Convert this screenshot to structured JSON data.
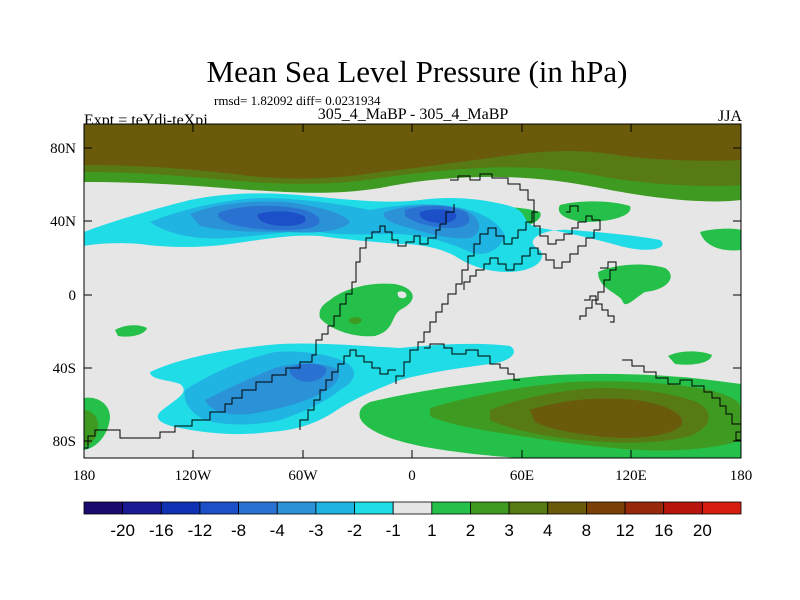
{
  "title": "Mean Sea Level Pressure (in hPa)",
  "stats": "rmsd= 1.82092 diff= 0.0231934",
  "left_label": "Expt = teYdj-teXpj",
  "center_label": "305_4_MaBP - 305_4_MaBP",
  "right_label": "JJA",
  "lat_ticks": [
    "80N",
    "40N",
    "0",
    "40S",
    "80S"
  ],
  "lon_ticks": [
    "180",
    "120W",
    "60W",
    "0",
    "60E",
    "120E",
    "180"
  ],
  "colorbar": {
    "labels": [
      "-20",
      "-16",
      "-12",
      "-8",
      "-4",
      "-3",
      "-2",
      "-1",
      "1",
      "2",
      "3",
      "4",
      "8",
      "12",
      "16",
      "20"
    ],
    "colors": [
      "#1a0a6e",
      "#1b1a94",
      "#0f32b4",
      "#1c50c8",
      "#2a72d2",
      "#2b92d8",
      "#20b4e2",
      "#20dce6",
      "#e6e6e6",
      "#25c04a",
      "#3f9a22",
      "#577a14",
      "#6a5a0c",
      "#7a4006",
      "#98280a",
      "#b8140c",
      "#d61e10"
    ]
  },
  "map_colors": {
    "background": "#e6e6e6",
    "cyan": "#20dce6",
    "light_blue": "#20b4e2",
    "mid_blue": "#2b92d8",
    "blue": "#2a72d2",
    "dark_blue": "#1c50c8",
    "green": "#25c04a",
    "dark_green": "#3f9a22",
    "olive": "#577a14",
    "brown": "#6a5a0c"
  }
}
